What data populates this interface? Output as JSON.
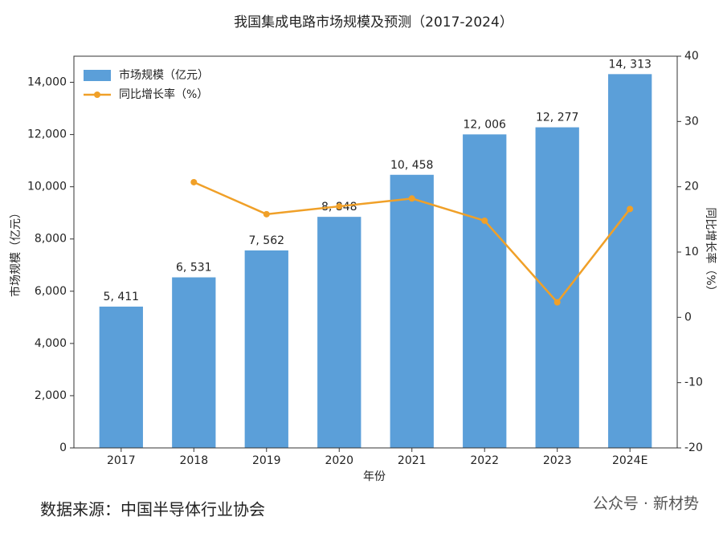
{
  "chart_data": {
    "type": "bar",
    "title": "我国集成电路市场规模及预测（2017-2024）",
    "x_label": "年份",
    "y_label": "市场规模（亿元）",
    "y2_label": "同比增长率（%）",
    "categories": [
      "2017",
      "2018",
      "2019",
      "2020",
      "2021",
      "2022",
      "2023",
      "2024E"
    ],
    "series": [
      {
        "name": "市场规模（亿元）",
        "type": "bar",
        "color": "#5b9fd9",
        "values": [
          5411,
          6531,
          7562,
          8848,
          10458,
          12006,
          12277,
          14313
        ],
        "value_labels": [
          "5, 411",
          "6, 531",
          "7, 562",
          "8, 848",
          "10, 458",
          "12, 006",
          "12, 277",
          "14, 313"
        ]
      },
      {
        "name": "同比增长率（%）",
        "type": "line",
        "axis": "y2",
        "color": "#f0a028",
        "values": [
          null,
          20.7,
          15.8,
          17.0,
          18.2,
          14.8,
          2.3,
          16.6
        ]
      }
    ],
    "ylim": [
      0,
      15000
    ],
    "yticks": [
      0,
      {
        "value": 2000,
        "label": "2,000"
      },
      {
        "value": 4000,
        "label": "4,000"
      },
      {
        "value": 6000,
        "label": "6,000"
      },
      {
        "value": 8000,
        "label": "8,000"
      },
      {
        "value": 10000,
        "label": "10,000"
      },
      {
        "value": 12000,
        "label": "12,000"
      },
      {
        "value": 14000,
        "label": "14,000"
      }
    ],
    "y2lim": [
      -20,
      40
    ],
    "y2ticks": [
      -20,
      -10,
      0,
      10,
      20,
      30,
      40
    ],
    "legend": "upper left",
    "source": "数据来源：中国半导体行业协会",
    "watermark": "公众号 · 新材势"
  }
}
